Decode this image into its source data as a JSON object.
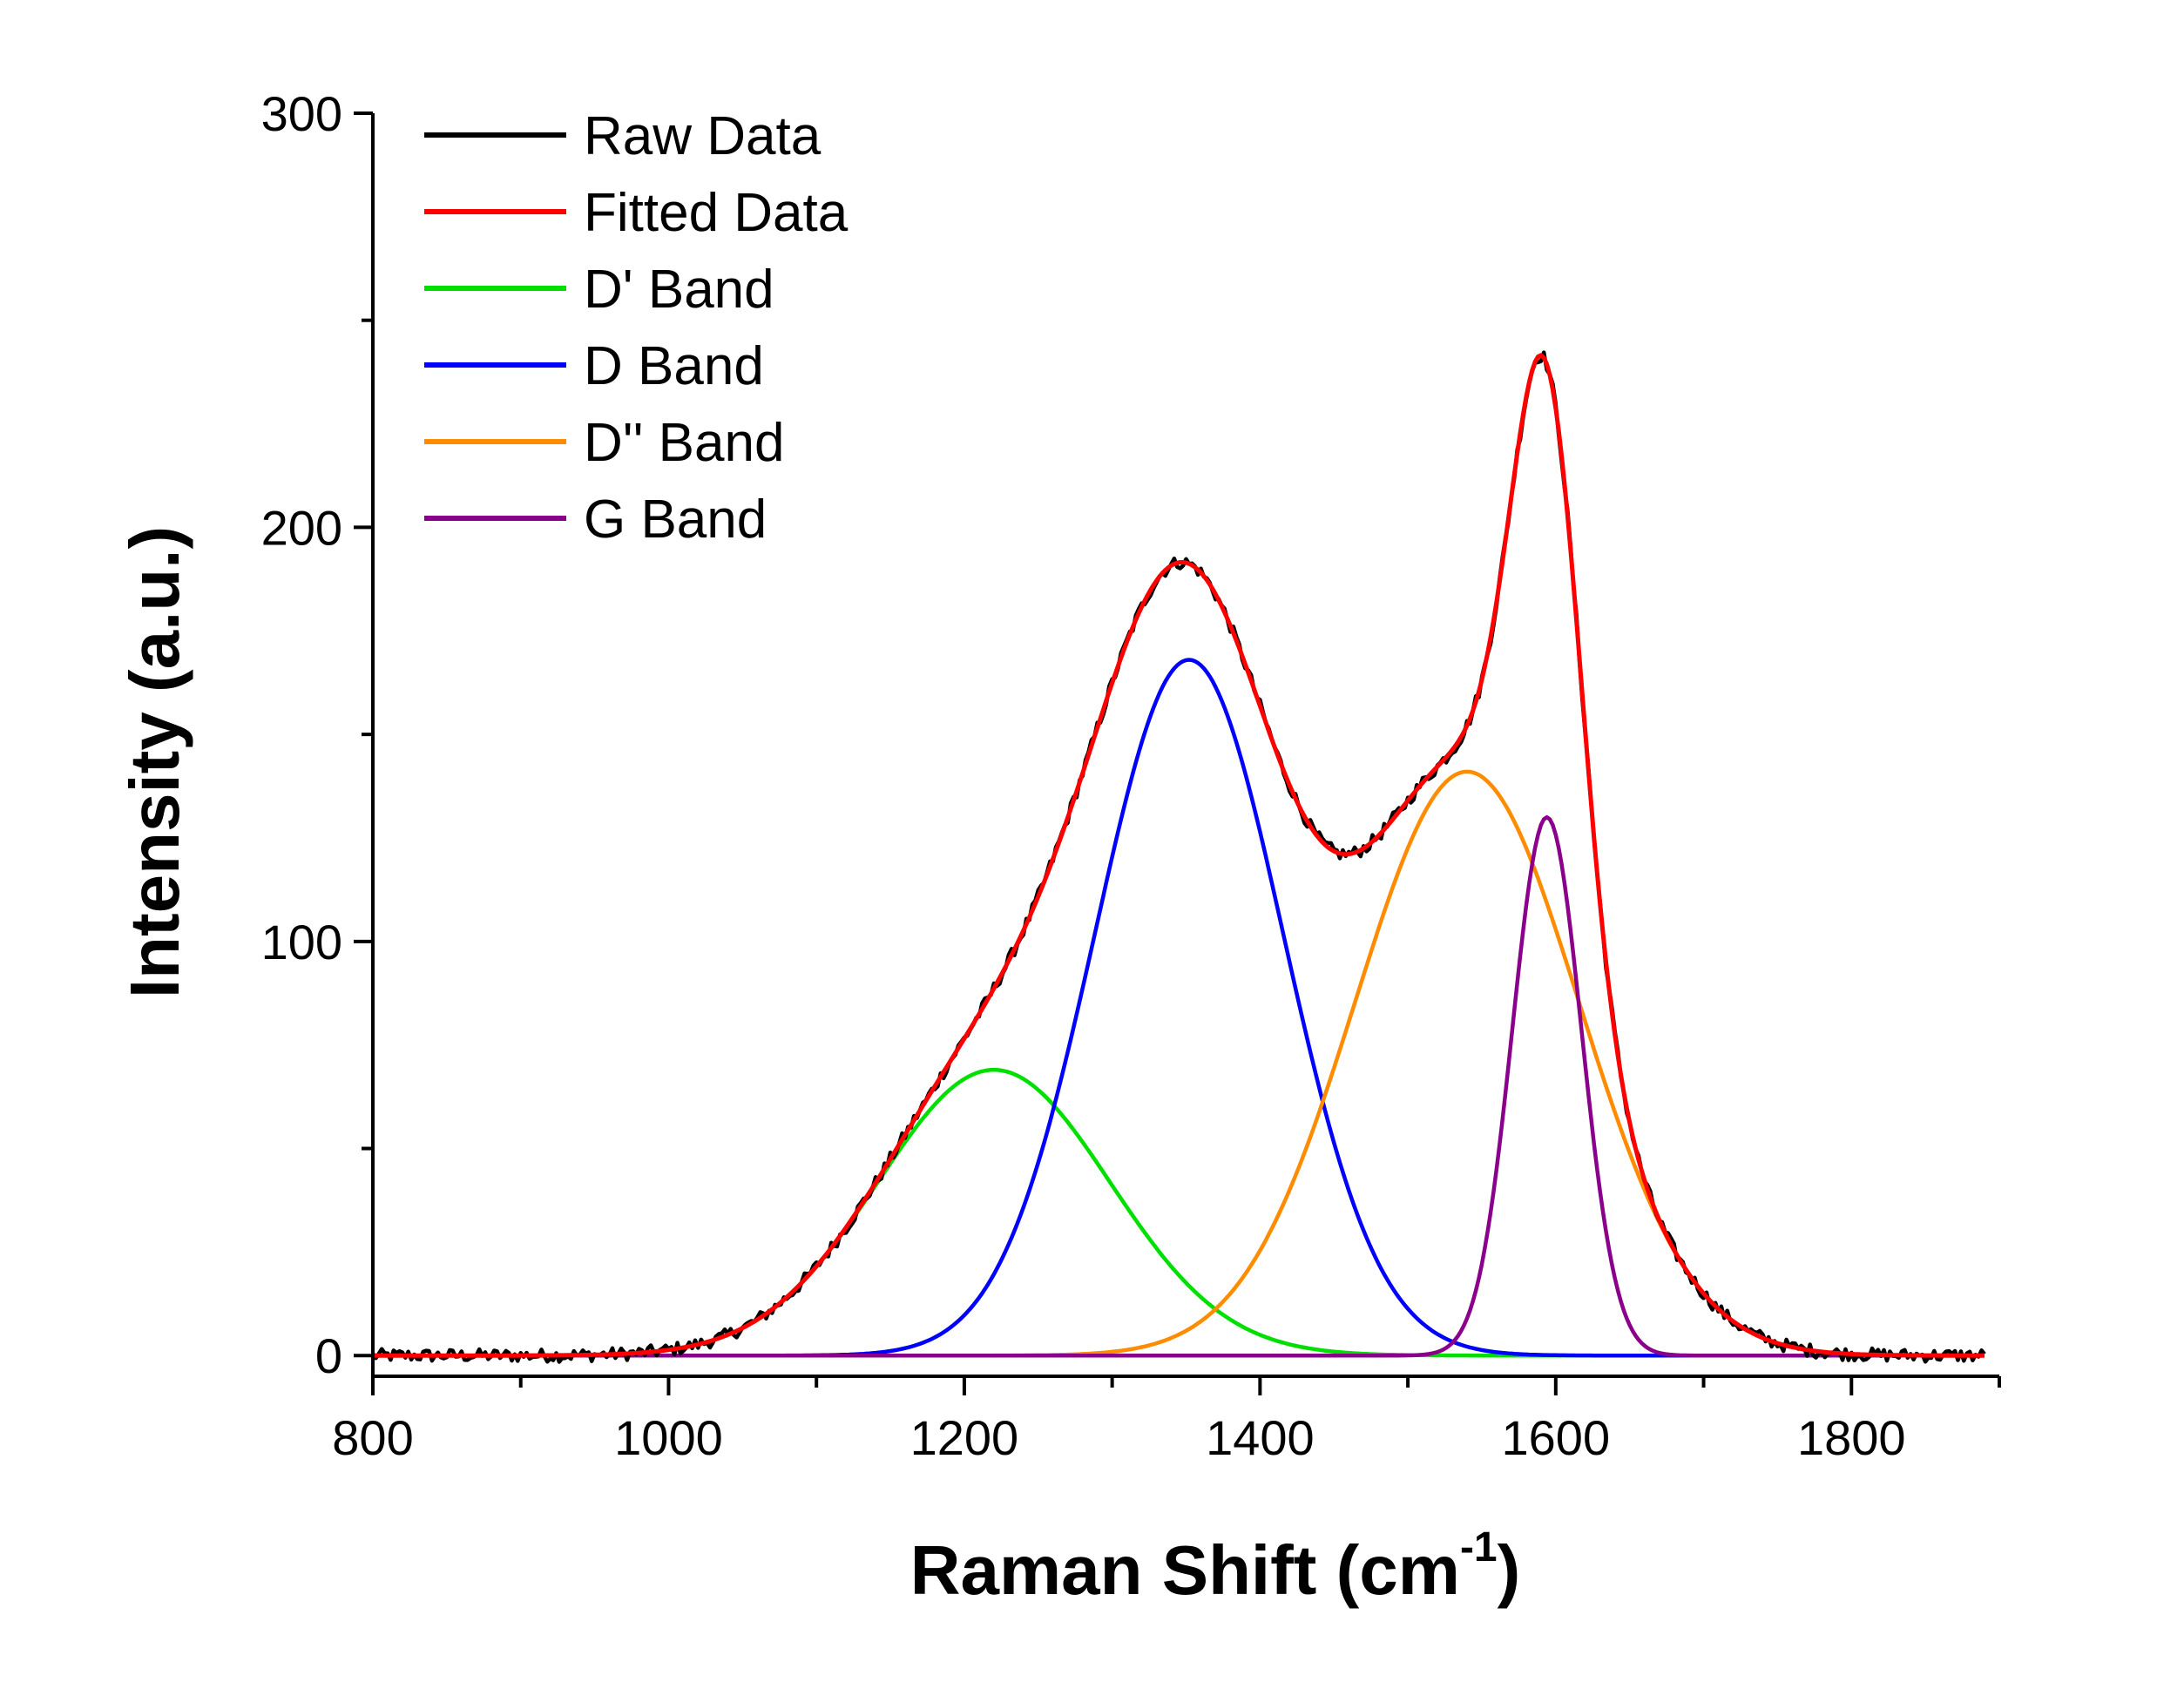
{
  "chart_data": {
    "type": "line",
    "title": "",
    "xlabel": "Raman Shift (cm",
    "xlabel_superscript": "-1",
    "xlabel_suffix": ")",
    "ylabel": "Intensity (a.u.)",
    "xlim": [
      800,
      1900
    ],
    "ylim": [
      -5,
      300
    ],
    "x_ticks": [
      800,
      1000,
      1200,
      1400,
      1600,
      1800
    ],
    "y_ticks": [
      0,
      100,
      200,
      300
    ],
    "x_tick_labels": [
      "800",
      "1000",
      "1200",
      "1400",
      "1600",
      "1800"
    ],
    "y_tick_labels": [
      "0",
      "100",
      "200",
      "300"
    ],
    "legend_position": "top-left",
    "grid": false,
    "x_range": [
      800,
      1890
    ],
    "series": [
      {
        "name": "Raw Data",
        "color": "#000000",
        "kind": "raw"
      },
      {
        "name": "Fitted Data",
        "color": "#ff0000",
        "kind": "sum"
      },
      {
        "name": "D' Band",
        "color": "#00e000",
        "kind": "gaussian",
        "center": 1220,
        "amplitude": 69,
        "fwhm": 185
      },
      {
        "name": "D Band",
        "color": "#0000ff",
        "kind": "gaussian",
        "center": 1352,
        "amplitude": 168,
        "fwhm": 150
      },
      {
        "name": "D'' Band",
        "color": "#ff8c00",
        "kind": "gaussian",
        "center": 1540,
        "amplitude": 141,
        "fwhm": 178
      },
      {
        "name": "G Band",
        "color": "#8b008b",
        "kind": "gaussian",
        "center": 1594,
        "amplitude": 130,
        "fwhm": 55
      }
    ]
  }
}
